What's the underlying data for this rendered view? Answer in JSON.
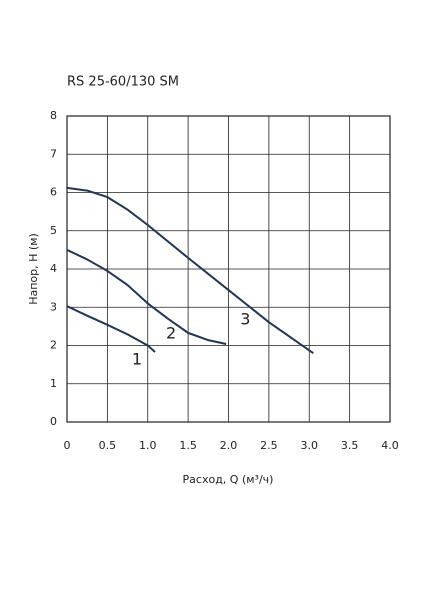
{
  "chart_data": {
    "type": "line",
    "title": "RS 25-60/130 SM",
    "xlabel": "Расход, Q (м³/ч)",
    "ylabel": "Напор, H (м)",
    "xlim": [
      0,
      4
    ],
    "ylim": [
      0,
      8
    ],
    "xticks": [
      0,
      0.5,
      {
        "value": 1,
        "label": "1.0"
      },
      1.5,
      {
        "value": 2,
        "label": "2.0"
      },
      2.5,
      {
        "value": 3,
        "label": "3.0"
      },
      3.5,
      {
        "value": 4,
        "label": "4.0"
      }
    ],
    "yticks": [
      0,
      1,
      2,
      3,
      4,
      5,
      6,
      7,
      8
    ],
    "grid": true,
    "series": [
      {
        "name": "1",
        "color": "#1f3658",
        "x": [
          0,
          0.25,
          0.5,
          0.75,
          1.0,
          1.09
        ],
        "values": [
          3.03,
          2.78,
          2.54,
          2.29,
          2.0,
          1.83
        ]
      },
      {
        "name": "2",
        "color": "#1f3658",
        "x": [
          0,
          0.25,
          0.5,
          0.75,
          1.0,
          1.25,
          1.5,
          1.75,
          1.97
        ],
        "values": [
          4.5,
          4.25,
          3.95,
          3.58,
          3.1,
          2.7,
          2.33,
          2.14,
          2.04
        ]
      },
      {
        "name": "3",
        "color": "#1f3658",
        "x": [
          0,
          0.25,
          0.5,
          0.75,
          1.0,
          1.5,
          2.0,
          2.5,
          3.05
        ],
        "values": [
          6.12,
          6.05,
          5.88,
          5.55,
          5.15,
          4.29,
          3.45,
          2.61,
          1.8
        ]
      }
    ]
  }
}
